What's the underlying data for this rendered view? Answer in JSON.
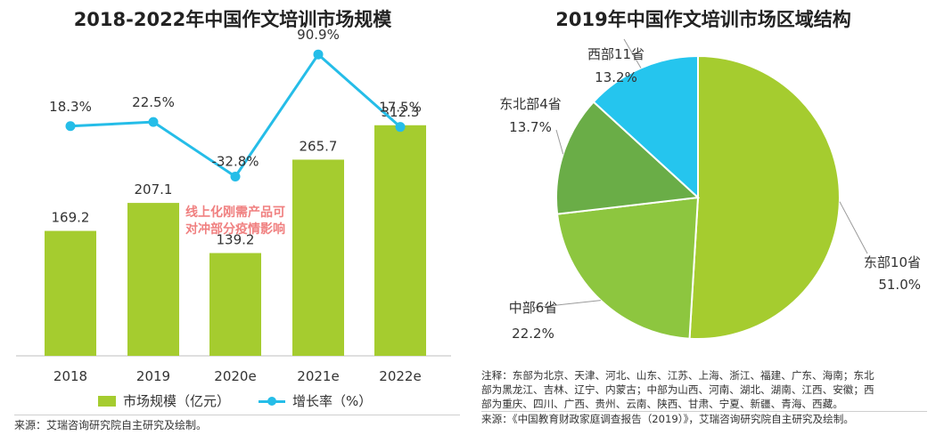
{
  "left": {
    "title": "2018-2022年中国作文培训市场规模",
    "legend": {
      "bar_label": "市场规模（亿元）",
      "line_label": "增长率（%）"
    },
    "annotation": {
      "line1": "线上化刚需产品可",
      "line2": "对冲部分疫情影响"
    },
    "source": "来源：艾瑞咨询研究院自主研究及绘制。"
  },
  "right": {
    "title": "2019年中国作文培训市场区域结构",
    "note_lines": [
      "注释：东部为北京、天津、河北、山东、江苏、上海、浙江、福建、广东、海南；东北",
      "部为黑龙江、吉林、辽宁、内蒙古；中部为山西、河南、湖北、湖南、江西、安徽；西",
      "部为重庆、四川、广西、贵州、云南、陕西、甘肃、宁夏、新疆、青海、西藏。"
    ],
    "source": "来源：《中国教育财政家庭调查报告（2019）》，艾瑞咨询研究院自主研究及绘制。"
  },
  "colors": {
    "bar": "#a5cc2f",
    "line": "#25bde8",
    "annotation": "#f08080",
    "pie": [
      "#a5cc2f",
      "#8dc63f",
      "#6aad47",
      "#25c5ee"
    ]
  },
  "chart_data": [
    {
      "type": "bar",
      "title": "2018-2022年中国作文培训市场规模",
      "categories": [
        "2018",
        "2019",
        "2020e",
        "2021e",
        "2022e"
      ],
      "series": [
        {
          "name": "市场规模（亿元）",
          "type": "bar",
          "values": [
            169.2,
            207.1,
            139.2,
            265.7,
            312.3
          ],
          "labels": [
            "169.2",
            "207.1",
            "139.2",
            "265.7",
            "312.3"
          ]
        },
        {
          "name": "增长率（%）",
          "type": "line",
          "values": [
            18.3,
            22.5,
            -32.8,
            90.9,
            17.5
          ],
          "labels": [
            "18.3%",
            "22.5%",
            "-32.8%",
            "90.9%",
            "17.5%"
          ]
        }
      ],
      "ylim": [
        0,
        400
      ],
      "line_ylim": [
        -90,
        110
      ]
    },
    {
      "type": "pie",
      "title": "2019年中国作文培训市场区域结构",
      "slices": [
        {
          "name": "东部10省",
          "value": 51.0,
          "label": "51.0%"
        },
        {
          "name": "中部6省",
          "value": 22.2,
          "label": "22.2%"
        },
        {
          "name": "东北部4省",
          "value": 13.7,
          "label": "13.7%"
        },
        {
          "name": "西部11省",
          "value": 13.2,
          "label": "13.2%"
        }
      ]
    }
  ]
}
